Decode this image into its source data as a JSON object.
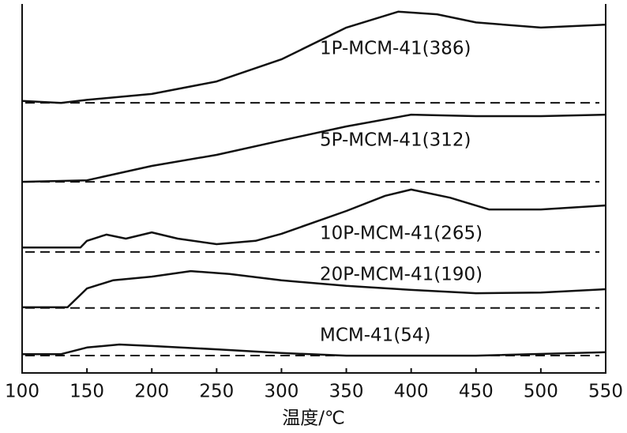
{
  "chart_data": {
    "type": "line",
    "x_label": "温度/℃",
    "xlim": [
      100,
      550
    ],
    "ylim": [
      0,
      100
    ],
    "xticks": [
      100,
      150,
      200,
      250,
      300,
      350,
      400,
      450,
      500,
      550
    ],
    "series": [
      {
        "name": "1P-MCM-41(386)",
        "color": "#111111",
        "baseline": 73.2,
        "x": [
          100,
          130,
          150,
          200,
          250,
          300,
          350,
          390,
          420,
          450,
          500,
          550
        ],
        "values": [
          73.7,
          73.2,
          74,
          75.6,
          79,
          85,
          93.6,
          97.9,
          97.2,
          95,
          93.6,
          94.4
        ]
      },
      {
        "name": "5P-MCM-41(312)",
        "color": "#111111",
        "baseline": 51.8,
        "x": [
          100,
          150,
          200,
          250,
          300,
          350,
          400,
          450,
          500,
          550
        ],
        "values": [
          51.8,
          52.2,
          56.1,
          59.1,
          63,
          66.8,
          70,
          69.6,
          69.6,
          70
        ]
      },
      {
        "name": "10P-MCM-41(265)",
        "color": "#111111",
        "baseline": 32.8,
        "x": [
          100,
          145,
          150,
          165,
          180,
          200,
          220,
          250,
          280,
          300,
          350,
          380,
          400,
          430,
          460,
          500,
          550
        ],
        "values": [
          34,
          34,
          35.8,
          37.5,
          36.4,
          38.1,
          36.4,
          34.9,
          35.8,
          37.7,
          43.9,
          48,
          49.7,
          47.5,
          44.3,
          44.3,
          45.4
        ]
      },
      {
        "name": "20P-MCM-41(190)",
        "color": "#111111",
        "baseline": 17.6,
        "x": [
          100,
          135,
          150,
          170,
          200,
          230,
          260,
          300,
          350,
          400,
          450,
          500,
          550
        ],
        "values": [
          17.8,
          17.8,
          22.9,
          25.1,
          26.1,
          27.6,
          26.8,
          25.1,
          23.6,
          22.5,
          21.6,
          21.8,
          22.7
        ]
      },
      {
        "name": "MCM-41(54)",
        "color": "#111111",
        "baseline": 4.7,
        "x": [
          100,
          130,
          150,
          175,
          200,
          250,
          300,
          350,
          450,
          550
        ],
        "values": [
          5.1,
          5.1,
          6.9,
          7.7,
          7.3,
          6.4,
          5.4,
          4.7,
          4.7,
          5.6
        ]
      }
    ]
  }
}
